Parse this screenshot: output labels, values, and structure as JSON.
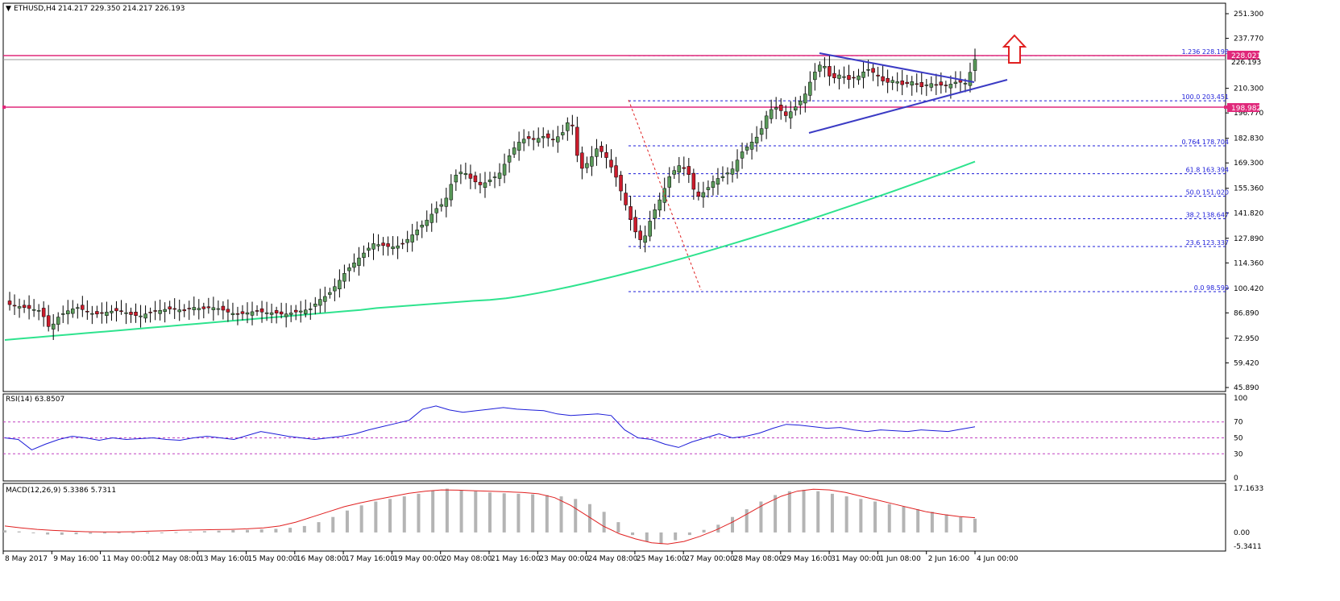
{
  "header": {
    "symbol": "ETHUSD,H4",
    "ohlc": "214.217 229.350 214.217 226.193"
  },
  "price_axis": {
    "ticks": [
      "251.300",
      "237.770",
      "210.300",
      "196.770",
      "182.830",
      "169.300",
      "155.360",
      "141.820",
      "127.890",
      "114.360",
      "100.420",
      "86.890",
      "72.950",
      "59.420",
      "45.890"
    ],
    "current_label": "226.193",
    "resistance_label": "228.021",
    "support_label": "198.982"
  },
  "fib_levels": [
    {
      "label": "1.236  228.198",
      "price": 228.198
    },
    {
      "label": "100.0  203.451",
      "price": 203.451
    },
    {
      "label": "0.764  178.704",
      "price": 178.704
    },
    {
      "label": "61.8  163.394",
      "price": 163.394
    },
    {
      "label": "50.0  151.020",
      "price": 151.02
    },
    {
      "label": "38.2  138.647",
      "price": 138.647
    },
    {
      "label": "23.6  123.337",
      "price": 123.337
    },
    {
      "label": "0.0  98.590",
      "price": 98.59
    }
  ],
  "rsi": {
    "label": "RSI(14) 63.8507",
    "ticks": [
      "100",
      "70",
      "50",
      "30",
      "0"
    ]
  },
  "macd": {
    "label": "MACD(12,26,9) 5.3386 5.7311",
    "ticks": [
      "17.1633",
      "0.00",
      "-5.3411"
    ]
  },
  "time_axis": [
    "8 May 2017",
    "9 May 16:00",
    "11 May 00:00",
    "12 May 08:00",
    "13 May 16:00",
    "15 May 00:00",
    "16 May 08:00",
    "17 May 16:00",
    "19 May 00:00",
    "20 May 08:00",
    "21 May 16:00",
    "23 May 00:00",
    "24 May 08:00",
    "25 May 16:00",
    "27 May 00:00",
    "28 May 08:00",
    "29 May 16:00",
    "31 May 00:00",
    "1 Jun 08:00",
    "2 Jun 16:00",
    "4 Jun 00:00"
  ],
  "colors": {
    "bull": "#5a9a5a",
    "bear": "#cc1c2c",
    "ma": "#2ee38e",
    "trend": "#3b3bc4",
    "fib": "#1c1cd8",
    "resistance": "#e0287a",
    "rsi": "#1c1cd8",
    "macd_signal": "#e02020",
    "macd_hist": "#b4b4b4",
    "arrow": "#e02020"
  },
  "chart_data": [
    {
      "type": "candlestick",
      "title": "ETHUSD,H4",
      "ylim": [
        45.89,
        258
      ],
      "x_labels": [
        "8 May 2017",
        "9 May 16:00",
        "11 May 00:00",
        "12 May 08:00",
        "13 May 16:00",
        "15 May 00:00",
        "16 May 08:00",
        "17 May 16:00",
        "19 May 00:00",
        "20 May 08:00",
        "21 May 16:00",
        "23 May 00:00",
        "24 May 08:00",
        "25 May 16:00",
        "27 May 00:00",
        "28 May 08:00",
        "29 May 16:00",
        "31 May 00:00",
        "1 Jun 08:00",
        "2 Jun 16:00",
        "4 Jun 00:00"
      ],
      "close_path": [
        [
          0,
          92
        ],
        [
          8,
          88
        ],
        [
          10,
          78
        ],
        [
          12,
          85
        ],
        [
          14,
          88
        ],
        [
          16,
          90
        ],
        [
          18,
          88
        ],
        [
          20,
          86
        ],
        [
          22,
          87
        ],
        [
          24,
          88
        ],
        [
          26,
          88
        ],
        [
          28,
          86
        ],
        [
          30,
          85
        ],
        [
          32,
          87
        ],
        [
          34,
          88
        ],
        [
          36,
          89
        ],
        [
          38,
          89
        ],
        [
          40,
          88
        ],
        [
          42,
          90
        ],
        [
          44,
          89
        ],
        [
          46,
          90
        ],
        [
          48,
          89
        ],
        [
          50,
          87
        ],
        [
          52,
          86
        ],
        [
          54,
          87
        ],
        [
          56,
          88
        ],
        [
          58,
          87
        ],
        [
          60,
          87
        ],
        [
          62,
          86
        ],
        [
          64,
          87
        ],
        [
          66,
          88
        ],
        [
          68,
          89
        ],
        [
          70,
          94
        ],
        [
          72,
          97
        ],
        [
          74,
          103
        ],
        [
          76,
          110
        ],
        [
          78,
          115
        ],
        [
          80,
          120
        ],
        [
          82,
          125
        ],
        [
          84,
          124
        ],
        [
          86,
          123
        ],
        [
          88,
          124
        ],
        [
          90,
          128
        ],
        [
          92,
          133
        ],
        [
          94,
          138
        ],
        [
          96,
          144
        ],
        [
          98,
          148
        ],
        [
          100,
          162
        ],
        [
          102,
          165
        ],
        [
          104,
          160
        ],
        [
          106,
          157
        ],
        [
          108,
          160
        ],
        [
          110,
          163
        ],
        [
          112,
          172
        ],
        [
          114,
          180
        ],
        [
          116,
          183
        ],
        [
          118,
          182
        ],
        [
          120,
          184
        ],
        [
          122,
          182
        ],
        [
          124,
          185
        ],
        [
          126,
          195
        ],
        [
          127,
          180
        ],
        [
          128,
          165
        ],
        [
          130,
          170
        ],
        [
          132,
          178
        ],
        [
          134,
          172
        ],
        [
          136,
          162
        ],
        [
          138,
          148
        ],
        [
          140,
          133
        ],
        [
          142,
          125
        ],
        [
          144,
          140
        ],
        [
          146,
          150
        ],
        [
          148,
          162
        ],
        [
          150,
          168
        ],
        [
          152,
          165
        ],
        [
          154,
          150
        ],
        [
          156,
          154
        ],
        [
          158,
          160
        ],
        [
          160,
          162
        ],
        [
          162,
          166
        ],
        [
          164,
          175
        ],
        [
          166,
          180
        ],
        [
          168,
          185
        ],
        [
          170,
          198
        ],
        [
          172,
          200
        ],
        [
          174,
          195
        ],
        [
          176,
          200
        ],
        [
          178,
          206
        ],
        [
          180,
          218
        ],
        [
          182,
          225
        ],
        [
          184,
          215
        ],
        [
          186,
          218
        ],
        [
          188,
          215
        ],
        [
          190,
          217
        ],
        [
          192,
          221
        ],
        [
          194,
          218
        ],
        [
          196,
          213
        ],
        [
          198,
          215
        ],
        [
          200,
          212
        ],
        [
          202,
          214
        ],
        [
          204,
          211
        ],
        [
          206,
          213
        ],
        [
          208,
          212
        ],
        [
          210,
          212
        ],
        [
          212,
          214
        ],
        [
          214,
          213
        ],
        [
          216,
          226.193
        ]
      ]
    },
    {
      "type": "line",
      "series": [
        {
          "name": "RSI(14)",
          "last": 63.8507
        }
      ],
      "ylim": [
        0,
        100
      ],
      "levels": [
        70,
        50,
        30
      ],
      "values": [
        50,
        48,
        35,
        42,
        48,
        52,
        50,
        47,
        50,
        48,
        49,
        50,
        48,
        47,
        50,
        52,
        50,
        48,
        53,
        58,
        55,
        52,
        50,
        48,
        50,
        52,
        55,
        60,
        64,
        68,
        72,
        86,
        90,
        85,
        82,
        84,
        86,
        88,
        86,
        85,
        84,
        80,
        78,
        79,
        80,
        78,
        60,
        50,
        48,
        42,
        38,
        45,
        50,
        55,
        50,
        52,
        56,
        62,
        67,
        66,
        64,
        62,
        63,
        60,
        58,
        60,
        59,
        58,
        60,
        59,
        58,
        61,
        63.8507
      ]
    },
    {
      "type": "bar",
      "series": [
        {
          "name": "MACD(12,26,9)",
          "last": 5.3386
        },
        {
          "name": "signal",
          "last": 5.7311
        }
      ],
      "ylim": [
        -5.3411,
        17.1633
      ],
      "hist_values": [
        0.8,
        0.4,
        -0.3,
        -0.8,
        -0.9,
        -0.7,
        -0.5,
        -0.4,
        -0.3,
        -0.2,
        -0.2,
        -0.1,
        0.1,
        0.3,
        0.5,
        0.7,
        0.9,
        1.0,
        1.2,
        1.4,
        1.8,
        2.5,
        4.0,
        6.0,
        8.5,
        10.5,
        12.0,
        13.0,
        14.0,
        15.0,
        16.2,
        17.0,
        16.5,
        16.0,
        15.5,
        15.2,
        15.0,
        14.8,
        14.5,
        14.0,
        13.0,
        11.0,
        8.0,
        4.0,
        -1.0,
        -3.5,
        -4.5,
        -3.0,
        -1.0,
        1.0,
        3.0,
        6.0,
        9.0,
        12.0,
        14.5,
        16.0,
        16.5,
        16.0,
        15.0,
        14.0,
        13.0,
        12.0,
        11.0,
        10.0,
        9.0,
        8.0,
        7.0,
        6.0,
        5.3386
      ],
      "signal_values": [
        2.5,
        1.8,
        1.2,
        0.8,
        0.5,
        0.3,
        0.2,
        0.2,
        0.3,
        0.5,
        0.7,
        0.9,
        1.0,
        1.1,
        1.2,
        1.4,
        1.8,
        2.5,
        4.0,
        6.0,
        8.0,
        10.0,
        11.5,
        12.8,
        14.0,
        15.2,
        16.0,
        16.5,
        16.4,
        16.2,
        16.0,
        15.8,
        15.5,
        15.0,
        13.5,
        10.5,
        6.5,
        2.5,
        -0.5,
        -2.5,
        -4.0,
        -4.5,
        -3.5,
        -1.5,
        1.0,
        4.0,
        7.5,
        11.0,
        14.0,
        16.0,
        16.8,
        16.5,
        15.5,
        14.0,
        12.5,
        11.0,
        9.5,
        8.0,
        7.0,
        6.2,
        5.7311
      ]
    }
  ]
}
